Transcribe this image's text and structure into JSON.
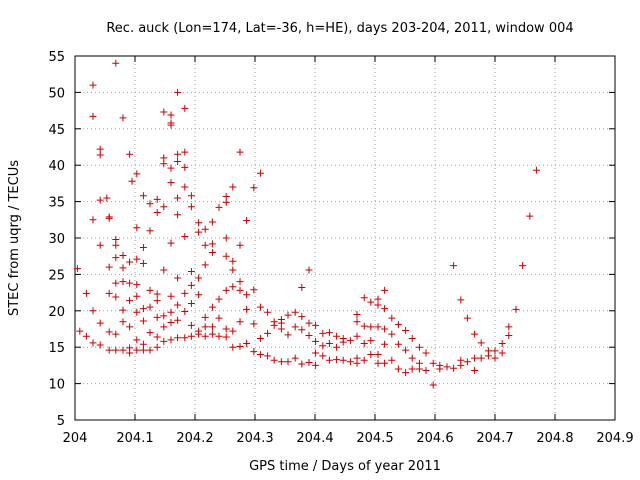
{
  "chart_data": {
    "type": "scatter",
    "title": "Rec. auck (Lon=174, Lat=-36, h=HE), days 203-204, 2011, window 004",
    "xlabel": "GPS time / Days of year 2011",
    "ylabel": "STEC from uqrg / TECUs",
    "xlim": [
      204,
      204.9
    ],
    "ylim": [
      5,
      55
    ],
    "xticks": [
      "204",
      "204.1",
      "204.2",
      "204.3",
      "204.4",
      "204.5",
      "204.6",
      "204.7",
      "204.8",
      "204.9"
    ],
    "yticks": [
      "5",
      "10",
      "15",
      "20",
      "25",
      "30",
      "35",
      "40",
      "45",
      "50",
      "55"
    ],
    "grid": true,
    "marker": "+",
    "color": "#cc0000",
    "series": [
      {
        "name": "STEC",
        "points": [
          [
            204.004,
            25.8
          ],
          [
            204.008,
            17.2
          ],
          [
            204.019,
            22.4
          ],
          [
            204.019,
            16.5
          ],
          [
            204.03,
            51.0
          ],
          [
            204.03,
            46.7
          ],
          [
            204.03,
            32.5
          ],
          [
            204.03,
            20.0
          ],
          [
            204.03,
            15.6
          ],
          [
            204.042,
            42.2
          ],
          [
            204.042,
            41.4
          ],
          [
            204.042,
            35.2
          ],
          [
            204.042,
            29.0
          ],
          [
            204.042,
            18.3
          ],
          [
            204.042,
            15.3
          ],
          [
            204.053,
            35.5
          ],
          [
            204.057,
            32.9
          ],
          [
            204.057,
            32.7
          ],
          [
            204.057,
            26.0
          ],
          [
            204.057,
            22.4
          ],
          [
            204.057,
            17.1
          ],
          [
            204.057,
            14.6
          ],
          [
            204.068,
            54.0
          ],
          [
            204.068,
            29.8
          ],
          [
            204.068,
            29.0
          ],
          [
            204.068,
            27.3
          ],
          [
            204.068,
            23.8
          ],
          [
            204.068,
            21.9
          ],
          [
            204.068,
            16.8
          ],
          [
            204.068,
            14.6
          ],
          [
            204.08,
            46.5
          ],
          [
            204.08,
            27.6
          ],
          [
            204.08,
            25.9
          ],
          [
            204.08,
            24.0
          ],
          [
            204.08,
            20.1
          ],
          [
            204.08,
            18.5
          ],
          [
            204.08,
            14.6
          ],
          [
            204.091,
            41.5
          ],
          [
            204.095,
            37.8
          ],
          [
            204.091,
            26.7
          ],
          [
            204.091,
            23.8
          ],
          [
            204.091,
            21.4
          ],
          [
            204.091,
            17.8
          ],
          [
            204.091,
            14.9
          ],
          [
            204.091,
            14.2
          ],
          [
            204.103,
            38.8
          ],
          [
            204.103,
            31.4
          ],
          [
            204.103,
            27.1
          ],
          [
            204.103,
            23.6
          ],
          [
            204.103,
            22.0
          ],
          [
            204.103,
            19.8
          ],
          [
            204.103,
            16.0
          ],
          [
            204.103,
            14.6
          ],
          [
            204.114,
            35.8
          ],
          [
            204.114,
            28.7
          ],
          [
            204.114,
            26.5
          ],
          [
            204.114,
            20.3
          ],
          [
            204.114,
            18.6
          ],
          [
            204.114,
            15.4
          ],
          [
            204.114,
            14.6
          ],
          [
            204.125,
            34.7
          ],
          [
            204.125,
            31.0
          ],
          [
            204.125,
            22.8
          ],
          [
            204.125,
            20.5
          ],
          [
            204.125,
            17.0
          ],
          [
            204.125,
            14.6
          ],
          [
            204.137,
            35.3
          ],
          [
            204.137,
            33.5
          ],
          [
            204.137,
            22.3
          ],
          [
            204.137,
            21.4
          ],
          [
            204.137,
            19.1
          ],
          [
            204.137,
            16.4
          ],
          [
            204.137,
            15.0
          ],
          [
            204.148,
            47.3
          ],
          [
            204.148,
            41.0
          ],
          [
            204.148,
            40.2
          ],
          [
            204.148,
            34.3
          ],
          [
            204.148,
            25.6
          ],
          [
            204.148,
            19.3
          ],
          [
            204.148,
            17.8
          ],
          [
            204.148,
            15.8
          ],
          [
            204.16,
            46.9
          ],
          [
            204.16,
            45.8
          ],
          [
            204.16,
            45.5
          ],
          [
            204.16,
            39.6
          ],
          [
            204.16,
            37.6
          ],
          [
            204.16,
            29.3
          ],
          [
            204.16,
            22.0
          ],
          [
            204.16,
            19.8
          ],
          [
            204.16,
            18.4
          ],
          [
            204.16,
            16.0
          ],
          [
            204.171,
            50.0
          ],
          [
            204.171,
            41.5
          ],
          [
            204.171,
            40.5
          ],
          [
            204.171,
            35.5
          ],
          [
            204.171,
            33.2
          ],
          [
            204.171,
            24.5
          ],
          [
            204.171,
            20.8
          ],
          [
            204.171,
            18.7
          ],
          [
            204.171,
            16.3
          ],
          [
            204.183,
            47.8
          ],
          [
            204.183,
            41.8
          ],
          [
            204.183,
            39.7
          ],
          [
            204.183,
            37.0
          ],
          [
            204.183,
            30.2
          ],
          [
            204.183,
            22.4
          ],
          [
            204.183,
            19.9
          ],
          [
            204.183,
            16.3
          ],
          [
            204.194,
            35.8
          ],
          [
            204.194,
            34.3
          ],
          [
            204.194,
            25.4
          ],
          [
            204.194,
            23.5
          ],
          [
            204.194,
            21.0
          ],
          [
            204.194,
            18.0
          ],
          [
            204.194,
            16.5
          ],
          [
            204.206,
            32.1
          ],
          [
            204.206,
            30.8
          ],
          [
            204.206,
            24.5
          ],
          [
            204.206,
            22.2
          ],
          [
            204.206,
            17.2
          ],
          [
            204.206,
            16.8
          ],
          [
            204.217,
            31.2
          ],
          [
            204.217,
            29.0
          ],
          [
            204.217,
            26.3
          ],
          [
            204.217,
            19.1
          ],
          [
            204.217,
            17.8
          ],
          [
            204.217,
            16.5
          ],
          [
            204.229,
            32.2
          ],
          [
            204.229,
            29.2
          ],
          [
            204.229,
            28.0
          ],
          [
            204.229,
            20.5
          ],
          [
            204.229,
            17.8
          ],
          [
            204.229,
            16.8
          ],
          [
            204.24,
            34.2
          ],
          [
            204.24,
            21.6
          ],
          [
            204.24,
            19.0
          ],
          [
            204.24,
            16.5
          ],
          [
            204.252,
            35.7
          ],
          [
            204.252,
            34.9
          ],
          [
            204.252,
            30.0
          ],
          [
            204.252,
            27.5
          ],
          [
            204.252,
            22.8
          ],
          [
            204.252,
            17.5
          ],
          [
            204.252,
            16.4
          ],
          [
            204.263,
            37.0
          ],
          [
            204.263,
            26.8
          ],
          [
            204.263,
            25.6
          ],
          [
            204.263,
            23.3
          ],
          [
            204.263,
            17.2
          ],
          [
            204.263,
            15.0
          ],
          [
            204.275,
            41.8
          ],
          [
            204.275,
            29.0
          ],
          [
            204.275,
            24.0
          ],
          [
            204.275,
            22.8
          ],
          [
            204.275,
            18.5
          ],
          [
            204.275,
            15.1
          ],
          [
            204.286,
            32.4
          ],
          [
            204.286,
            22.2
          ],
          [
            204.286,
            20.2
          ],
          [
            204.286,
            15.5
          ],
          [
            204.298,
            36.9
          ],
          [
            204.298,
            22.9
          ],
          [
            204.298,
            18.2
          ],
          [
            204.298,
            14.4
          ],
          [
            204.309,
            38.9
          ],
          [
            204.309,
            20.5
          ],
          [
            204.309,
            16.2
          ],
          [
            204.309,
            14.0
          ],
          [
            204.321,
            19.8
          ],
          [
            204.321,
            16.9
          ],
          [
            204.321,
            13.8
          ],
          [
            204.332,
            18.5
          ],
          [
            204.332,
            18.0
          ],
          [
            204.332,
            13.2
          ],
          [
            204.344,
            18.8
          ],
          [
            204.344,
            18.3
          ],
          [
            204.344,
            17.5
          ],
          [
            204.344,
            13.0
          ],
          [
            204.355,
            19.4
          ],
          [
            204.355,
            16.7
          ],
          [
            204.355,
            13.0
          ],
          [
            204.367,
            19.8
          ],
          [
            204.367,
            17.8
          ],
          [
            204.367,
            13.5
          ],
          [
            204.378,
            23.2
          ],
          [
            204.378,
            19.2
          ],
          [
            204.378,
            17.4
          ],
          [
            204.378,
            12.7
          ],
          [
            204.39,
            25.6
          ],
          [
            204.39,
            18.3
          ],
          [
            204.39,
            16.6
          ],
          [
            204.39,
            12.9
          ],
          [
            204.401,
            18.0
          ],
          [
            204.401,
            15.8
          ],
          [
            204.401,
            14.2
          ],
          [
            204.401,
            12.5
          ],
          [
            204.413,
            16.9
          ],
          [
            204.413,
            15.2
          ],
          [
            204.413,
            13.8
          ],
          [
            204.424,
            17.0
          ],
          [
            204.424,
            15.5
          ],
          [
            204.424,
            13.2
          ],
          [
            204.436,
            16.5
          ],
          [
            204.436,
            15.0
          ],
          [
            204.436,
            13.3
          ],
          [
            204.447,
            16.2
          ],
          [
            204.447,
            15.7
          ],
          [
            204.447,
            13.2
          ],
          [
            204.459,
            15.9
          ],
          [
            204.459,
            13.0
          ],
          [
            204.47,
            19.5
          ],
          [
            204.47,
            18.5
          ],
          [
            204.47,
            16.5
          ],
          [
            204.47,
            13.5
          ],
          [
            204.47,
            12.8
          ],
          [
            204.482,
            21.8
          ],
          [
            204.482,
            17.9
          ],
          [
            204.482,
            15.5
          ],
          [
            204.482,
            13.2
          ],
          [
            204.493,
            21.2
          ],
          [
            204.493,
            17.8
          ],
          [
            204.493,
            15.9
          ],
          [
            204.493,
            14.0
          ],
          [
            204.505,
            21.6
          ],
          [
            204.505,
            20.8
          ],
          [
            204.505,
            17.8
          ],
          [
            204.505,
            14.0
          ],
          [
            204.505,
            12.8
          ],
          [
            204.516,
            22.8
          ],
          [
            204.516,
            20.3
          ],
          [
            204.516,
            17.5
          ],
          [
            204.516,
            15.4
          ],
          [
            204.516,
            12.8
          ],
          [
            204.528,
            19.0
          ],
          [
            204.528,
            16.8
          ],
          [
            204.528,
            13.2
          ],
          [
            204.539,
            18.1
          ],
          [
            204.539,
            15.4
          ],
          [
            204.539,
            12.0
          ],
          [
            204.551,
            17.3
          ],
          [
            204.551,
            14.6
          ],
          [
            204.551,
            11.5
          ],
          [
            204.562,
            16.2
          ],
          [
            204.562,
            13.5
          ],
          [
            204.562,
            12.0
          ],
          [
            204.574,
            15.0
          ],
          [
            204.574,
            12.8
          ],
          [
            204.574,
            12.0
          ],
          [
            204.585,
            14.2
          ],
          [
            204.585,
            11.8
          ],
          [
            204.597,
            12.8
          ],
          [
            204.597,
            9.8
          ],
          [
            204.608,
            12.5
          ],
          [
            204.608,
            12.0
          ],
          [
            204.62,
            12.3
          ],
          [
            204.631,
            26.2
          ],
          [
            204.631,
            12.1
          ],
          [
            204.643,
            21.5
          ],
          [
            204.643,
            13.2
          ],
          [
            204.643,
            12.5
          ],
          [
            204.654,
            19.0
          ],
          [
            204.654,
            13.0
          ],
          [
            204.666,
            16.8
          ],
          [
            204.666,
            13.5
          ],
          [
            204.666,
            11.8
          ],
          [
            204.677,
            15.6
          ],
          [
            204.677,
            13.5
          ],
          [
            204.689,
            14.5
          ],
          [
            204.689,
            13.8
          ],
          [
            204.7,
            14.5
          ],
          [
            204.7,
            13.5
          ],
          [
            204.712,
            15.5
          ],
          [
            204.712,
            14.2
          ],
          [
            204.723,
            17.8
          ],
          [
            204.723,
            16.6
          ],
          [
            204.735,
            20.2
          ],
          [
            204.746,
            26.2
          ],
          [
            204.758,
            33.0
          ],
          [
            204.769,
            39.3
          ]
        ]
      }
    ]
  }
}
